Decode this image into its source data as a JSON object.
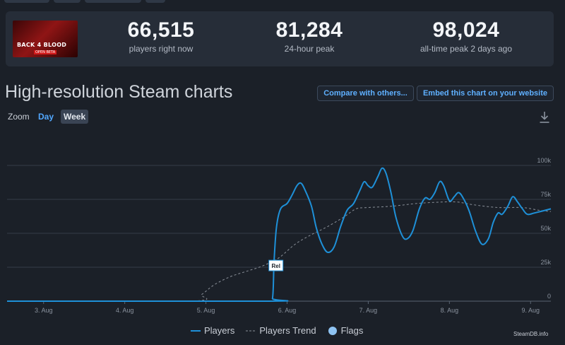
{
  "stats": {
    "players_now": {
      "value": "66,515",
      "label": "players right now"
    },
    "peak_24h": {
      "value": "81,284",
      "label": "24-hour peak"
    },
    "all_time_peak": {
      "value": "98,024",
      "label": "all-time peak 2 days ago"
    }
  },
  "game_thumb": {
    "title": "BACK 4 BLOOD",
    "subtitle": "OPEN BETA"
  },
  "section": {
    "title": "High-resolution Steam charts",
    "compare_label": "Compare with others...",
    "embed_label": "Embed this chart on your website"
  },
  "zoom": {
    "label": "Zoom",
    "day": "Day",
    "week": "Week",
    "selected": "Week"
  },
  "icons": {
    "download": "download-icon"
  },
  "legend": {
    "players": "Players",
    "trend": "Players Trend",
    "flags": "Flags"
  },
  "credit": "SteamDB.info",
  "colors": {
    "players": "#1e90d8",
    "trend": "#8a9099",
    "flags": "#8ec3f2",
    "accent": "#52a8ff"
  },
  "chart_data": {
    "type": "line",
    "x_ticks": [
      "3. Aug",
      "4. Aug",
      "5. Aug",
      "6. Aug",
      "7. Aug",
      "8. Aug",
      "9. Aug"
    ],
    "y_ticks": [
      "0",
      "25k",
      "50k",
      "75k",
      "100k"
    ],
    "ylim": [
      0,
      100000
    ],
    "xlim": [
      2.55,
      9.25
    ],
    "flag": {
      "label": "Rel",
      "x": 5.88,
      "y": 26000
    },
    "series": [
      {
        "name": "Players",
        "points": [
          [
            2.55,
            0
          ],
          [
            5.75,
            0
          ],
          [
            5.82,
            2000
          ],
          [
            5.84,
            30000
          ],
          [
            5.87,
            55000
          ],
          [
            5.92,
            68000
          ],
          [
            6.0,
            72000
          ],
          [
            6.06,
            78000
          ],
          [
            6.12,
            85000
          ],
          [
            6.17,
            87000
          ],
          [
            6.22,
            82000
          ],
          [
            6.3,
            70000
          ],
          [
            6.36,
            54000
          ],
          [
            6.43,
            42000
          ],
          [
            6.5,
            36000
          ],
          [
            6.58,
            40000
          ],
          [
            6.66,
            55000
          ],
          [
            6.74,
            67000
          ],
          [
            6.82,
            72000
          ],
          [
            6.9,
            82000
          ],
          [
            6.95,
            88000
          ],
          [
            7.0,
            85000
          ],
          [
            7.05,
            84000
          ],
          [
            7.12,
            92000
          ],
          [
            7.17,
            98000
          ],
          [
            7.22,
            94000
          ],
          [
            7.28,
            80000
          ],
          [
            7.34,
            62000
          ],
          [
            7.42,
            48000
          ],
          [
            7.48,
            46000
          ],
          [
            7.55,
            52000
          ],
          [
            7.63,
            68000
          ],
          [
            7.7,
            76000
          ],
          [
            7.76,
            75000
          ],
          [
            7.82,
            80000
          ],
          [
            7.88,
            88000
          ],
          [
            7.93,
            85000
          ],
          [
            8.0,
            74000
          ],
          [
            8.06,
            77000
          ],
          [
            8.11,
            80000
          ],
          [
            8.16,
            77000
          ],
          [
            8.24,
            67000
          ],
          [
            8.32,
            52000
          ],
          [
            8.4,
            42000
          ],
          [
            8.48,
            46000
          ],
          [
            8.54,
            58000
          ],
          [
            8.6,
            65000
          ],
          [
            8.65,
            64000
          ],
          [
            8.72,
            70000
          ],
          [
            8.78,
            77000
          ],
          [
            8.84,
            73000
          ],
          [
            8.9,
            68000
          ],
          [
            8.96,
            64000
          ],
          [
            9.05,
            65000
          ],
          [
            9.25,
            68000
          ]
        ]
      },
      {
        "name": "Players Trend",
        "points": [
          [
            2.55,
            0
          ],
          [
            4.8,
            0
          ],
          [
            4.95,
            5000
          ],
          [
            5.1,
            12000
          ],
          [
            5.3,
            18000
          ],
          [
            5.5,
            22000
          ],
          [
            5.7,
            26000
          ],
          [
            5.9,
            32000
          ],
          [
            6.1,
            42000
          ],
          [
            6.3,
            49000
          ],
          [
            6.5,
            55000
          ],
          [
            6.7,
            62000
          ],
          [
            6.85,
            68000
          ],
          [
            7.0,
            69000
          ],
          [
            7.3,
            70000
          ],
          [
            7.6,
            72000
          ],
          [
            7.9,
            73000
          ],
          [
            8.1,
            73000
          ],
          [
            8.3,
            71000
          ],
          [
            8.6,
            69000
          ],
          [
            8.9,
            69000
          ],
          [
            9.1,
            67000
          ],
          [
            9.25,
            66000
          ]
        ]
      }
    ]
  }
}
